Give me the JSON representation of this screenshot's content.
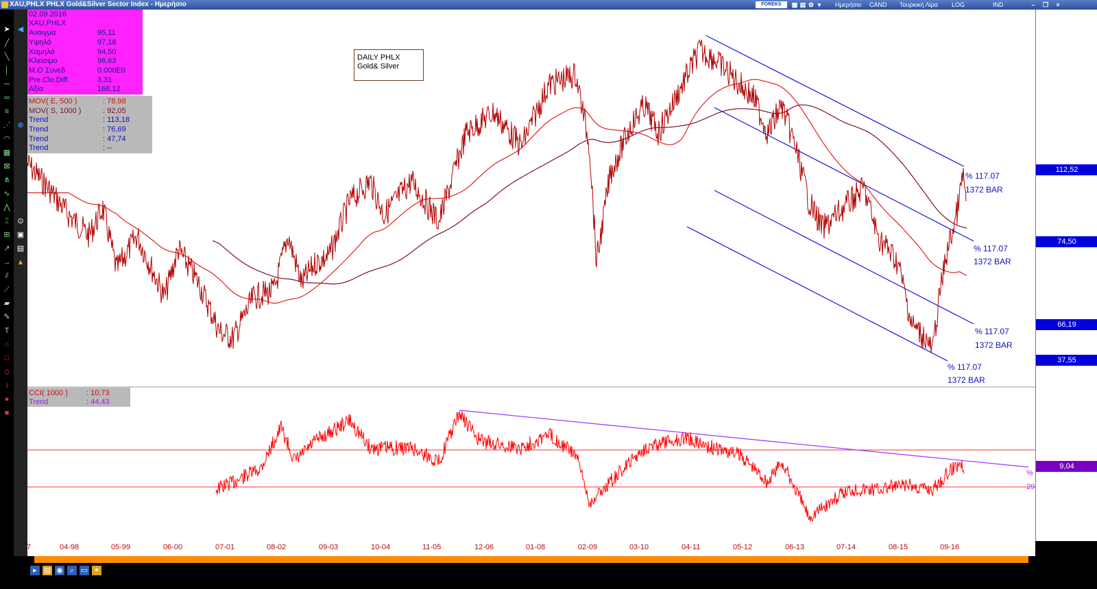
{
  "window": {
    "title": "XAU,PHLX PHLX Gold&Silver Sector Index - Ημερήσιο",
    "toolbar_labels": [
      "Ημερήσιο",
      "CAND",
      "Τουρκική Λίρα",
      "LOG",
      "IND"
    ],
    "logo_text": "FOREKS"
  },
  "info": {
    "rows": [
      {
        "k": "02.09.2016",
        "v": ""
      },
      {
        "k": "XAU,PHLX",
        "v": ""
      },
      {
        "k": "Ανοιγμα",
        "v": "95,11"
      },
      {
        "k": "Υψηλό",
        "v": "97,18"
      },
      {
        "k": "Χαμηλό",
        "v": "94,50"
      },
      {
        "k": "Κλείσιμο",
        "v": "96,63"
      },
      {
        "k": "Μ.Ο Συνεδ",
        "v": "0.000E0"
      },
      {
        "k": "Pre.Clo.Diff.",
        "v": "3,31"
      },
      {
        "k": "Αξία",
        "v": "168,12"
      }
    ]
  },
  "indicators": {
    "rows": [
      {
        "k": "MOV( E, 500 )",
        "v": ": 78,98",
        "color": "#d01010"
      },
      {
        "k": "MOV( S, 1000 )",
        "v": ": 92,05",
        "color": "#7a1030"
      },
      {
        "k": "Trend",
        "v": ": 113,18",
        "color": "#1010c0"
      },
      {
        "k": "Trend",
        "v": ": 76,69",
        "color": "#1010c0"
      },
      {
        "k": "Trend",
        "v": ": 47,74",
        "color": "#1010c0"
      },
      {
        "k": "Trend",
        "v": ": --",
        "color": "#1010c0"
      }
    ]
  },
  "cci": {
    "rows": [
      {
        "k": "CCI( 1000 )",
        "v": ": 10,73",
        "color": "#d01010"
      },
      {
        "k": "Trend",
        "v": ": 44,43",
        "color": "#9a20e0"
      }
    ]
  },
  "note": {
    "line1": "DAILY PHLX",
    "line2": "Gold& Silver"
  },
  "trend_labels": [
    {
      "pct": "% 117.07",
      "bar": "1372 BAR"
    },
    {
      "pct": "% 117.07",
      "bar": "1372 BAR"
    },
    {
      "pct": "% 117.07",
      "bar": "1372 BAR"
    },
    {
      "pct": "% 117.07",
      "bar": "1372 BAR"
    }
  ],
  "price_axis": [
    "112,52",
    "74,50",
    "66,19",
    "37,55"
  ],
  "cci_axis": {
    "value": "9,04",
    "pct": "%",
    "num": "29"
  },
  "x_axis": [
    "7",
    "04-98",
    "05-99",
    "06-00",
    "07-01",
    "08-02",
    "09-03",
    "10-04",
    "11-05",
    "12-06",
    "01-08",
    "02-09",
    "03-10",
    "04-11",
    "05-12",
    "06-13",
    "07-14",
    "08-15",
    "09-16"
  ],
  "colors": {
    "price": "#c00000",
    "ma500": "#e02020",
    "ma1000": "#7a1030",
    "trend": "#1010e0",
    "cci": "#ff0000",
    "cci_trend": "#9a30ff"
  }
}
